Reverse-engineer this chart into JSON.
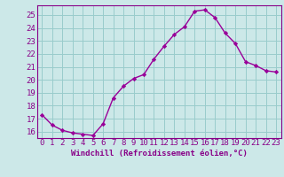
{
  "x": [
    0,
    1,
    2,
    3,
    4,
    5,
    6,
    7,
    8,
    9,
    10,
    11,
    12,
    13,
    14,
    15,
    16,
    17,
    18,
    19,
    20,
    21,
    22,
    23
  ],
  "y": [
    17.3,
    16.5,
    16.1,
    15.9,
    15.8,
    15.7,
    16.6,
    18.6,
    19.5,
    20.1,
    20.4,
    21.6,
    22.6,
    23.5,
    24.1,
    25.3,
    25.4,
    24.8,
    23.6,
    22.8,
    21.4,
    21.1,
    20.7,
    20.6
  ],
  "line_color": "#990099",
  "marker": "D",
  "marker_size": 2.2,
  "bg_color": "#cce8e8",
  "grid_color": "#99cccc",
  "xlabel": "Windchill (Refroidissement éolien,°C)",
  "ylim": [
    15.5,
    25.75
  ],
  "yticks": [
    16,
    17,
    18,
    19,
    20,
    21,
    22,
    23,
    24,
    25
  ],
  "xlim": [
    -0.5,
    23.5
  ],
  "xticks": [
    0,
    1,
    2,
    3,
    4,
    5,
    6,
    7,
    8,
    9,
    10,
    11,
    12,
    13,
    14,
    15,
    16,
    17,
    18,
    19,
    20,
    21,
    22,
    23
  ],
  "xlabel_fontsize": 6.5,
  "tick_fontsize": 6.5,
  "axis_label_color": "#880088",
  "tick_color": "#880088",
  "border_color": "#880088",
  "line_width": 1.0
}
